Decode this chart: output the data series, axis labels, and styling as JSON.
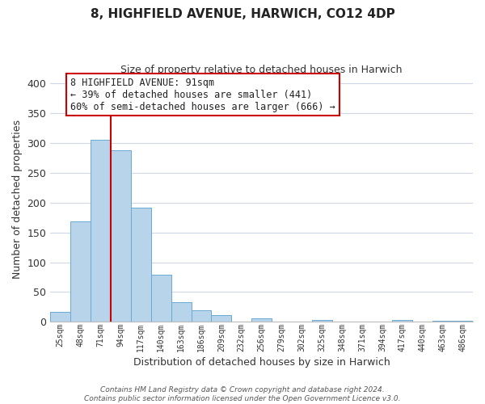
{
  "title": "8, HIGHFIELD AVENUE, HARWICH, CO12 4DP",
  "subtitle": "Size of property relative to detached houses in Harwich",
  "xlabel": "Distribution of detached houses by size in Harwich",
  "ylabel": "Number of detached properties",
  "bar_labels": [
    "25sqm",
    "48sqm",
    "71sqm",
    "94sqm",
    "117sqm",
    "140sqm",
    "163sqm",
    "186sqm",
    "209sqm",
    "232sqm",
    "256sqm",
    "279sqm",
    "302sqm",
    "325sqm",
    "348sqm",
    "371sqm",
    "394sqm",
    "417sqm",
    "440sqm",
    "463sqm",
    "486sqm"
  ],
  "bar_heights": [
    17,
    168,
    305,
    288,
    191,
    79,
    33,
    20,
    11,
    0,
    6,
    0,
    0,
    3,
    0,
    0,
    0,
    3,
    0,
    2,
    2
  ],
  "bar_color": "#b8d4ea",
  "bar_edge_color": "#6aaad4",
  "vline_color": "#cc0000",
  "annotation_text": "8 HIGHFIELD AVENUE: 91sqm\n← 39% of detached houses are smaller (441)\n60% of semi-detached houses are larger (666) →",
  "annotation_box_color": "#ffffff",
  "annotation_box_edge": "#cc0000",
  "footer_text": "Contains HM Land Registry data © Crown copyright and database right 2024.\nContains public sector information licensed under the Open Government Licence v3.0.",
  "ylim": [
    0,
    410
  ],
  "background_color": "#ffffff",
  "grid_color": "#d0d8e8"
}
